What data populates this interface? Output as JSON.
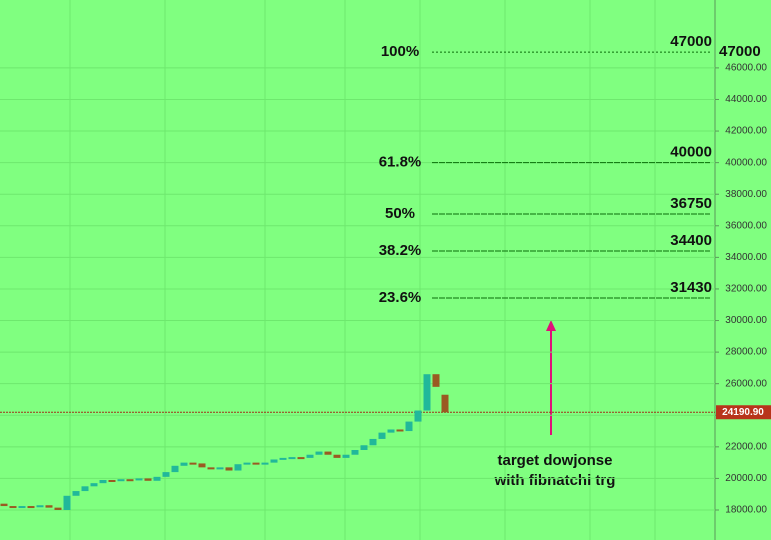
{
  "chart_data": {
    "type": "candlestick",
    "ylim": [
      16100,
      50300
    ],
    "yticks": [
      {
        "value": 18000,
        "label": "18000.00"
      },
      {
        "value": 20000,
        "label": "20000.00"
      },
      {
        "value": 22000,
        "label": "22000.00"
      },
      {
        "value": 24000,
        "label": "24000.00"
      },
      {
        "value": 26000,
        "label": "26000.00"
      },
      {
        "value": 28000,
        "label": "28000.00"
      },
      {
        "value": 30000,
        "label": "30000.00"
      },
      {
        "value": 32000,
        "label": "32000.00"
      },
      {
        "value": 34000,
        "label": "34000.00"
      },
      {
        "value": 36000,
        "label": "36000.00"
      },
      {
        "value": 38000,
        "label": "38000.00"
      },
      {
        "value": 40000,
        "label": "40000.00"
      },
      {
        "value": 42000,
        "label": "42000.00"
      },
      {
        "value": 44000,
        "label": "44000.00"
      },
      {
        "value": 46000,
        "label": "46000.00"
      }
    ],
    "grid": true,
    "up_color": "#21b89a",
    "down_color": "#9a5a22",
    "open": [
      18400,
      18250,
      18200,
      18250,
      18200,
      18300,
      18150,
      18000,
      18900,
      19200,
      19500,
      19700,
      19900,
      19850,
      19950,
      19900,
      20000,
      19850,
      20100,
      20400,
      20800,
      21000,
      20950,
      20700,
      20600,
      20700,
      20500,
      20900,
      21000,
      20900,
      21000,
      21200,
      21300,
      21350,
      21300,
      21500,
      21700,
      21500,
      21300,
      21500,
      21800,
      22100,
      22500,
      22900,
      23100,
      23000,
      23600,
      24300,
      26600,
      25300
    ],
    "close": [
      18250,
      18200,
      18250,
      18200,
      18300,
      18150,
      18000,
      18900,
      19200,
      19500,
      19700,
      19900,
      19850,
      19950,
      19900,
      20000,
      19850,
      20100,
      20400,
      20800,
      21000,
      20950,
      20700,
      20600,
      20700,
      20500,
      20900,
      21000,
      20900,
      21000,
      21200,
      21300,
      21350,
      21300,
      21500,
      21700,
      21500,
      21300,
      21500,
      21800,
      22100,
      22500,
      22900,
      23100,
      23000,
      23600,
      24300,
      26600,
      25800,
      24190.9
    ],
    "current_price": {
      "value": 24190.9,
      "label": "24190.90"
    },
    "fib_levels": [
      {
        "pct": "100%",
        "value": 47000
      },
      {
        "pct": "61.8%",
        "value": 40000
      },
      {
        "pct": "50%",
        "value": 36750
      },
      {
        "pct": "38.2%",
        "value": 34400
      },
      {
        "pct": "23.6%",
        "value": 31430
      }
    ],
    "annotation": [
      "target dowjonse",
      "with fibnatchi trg"
    ]
  }
}
